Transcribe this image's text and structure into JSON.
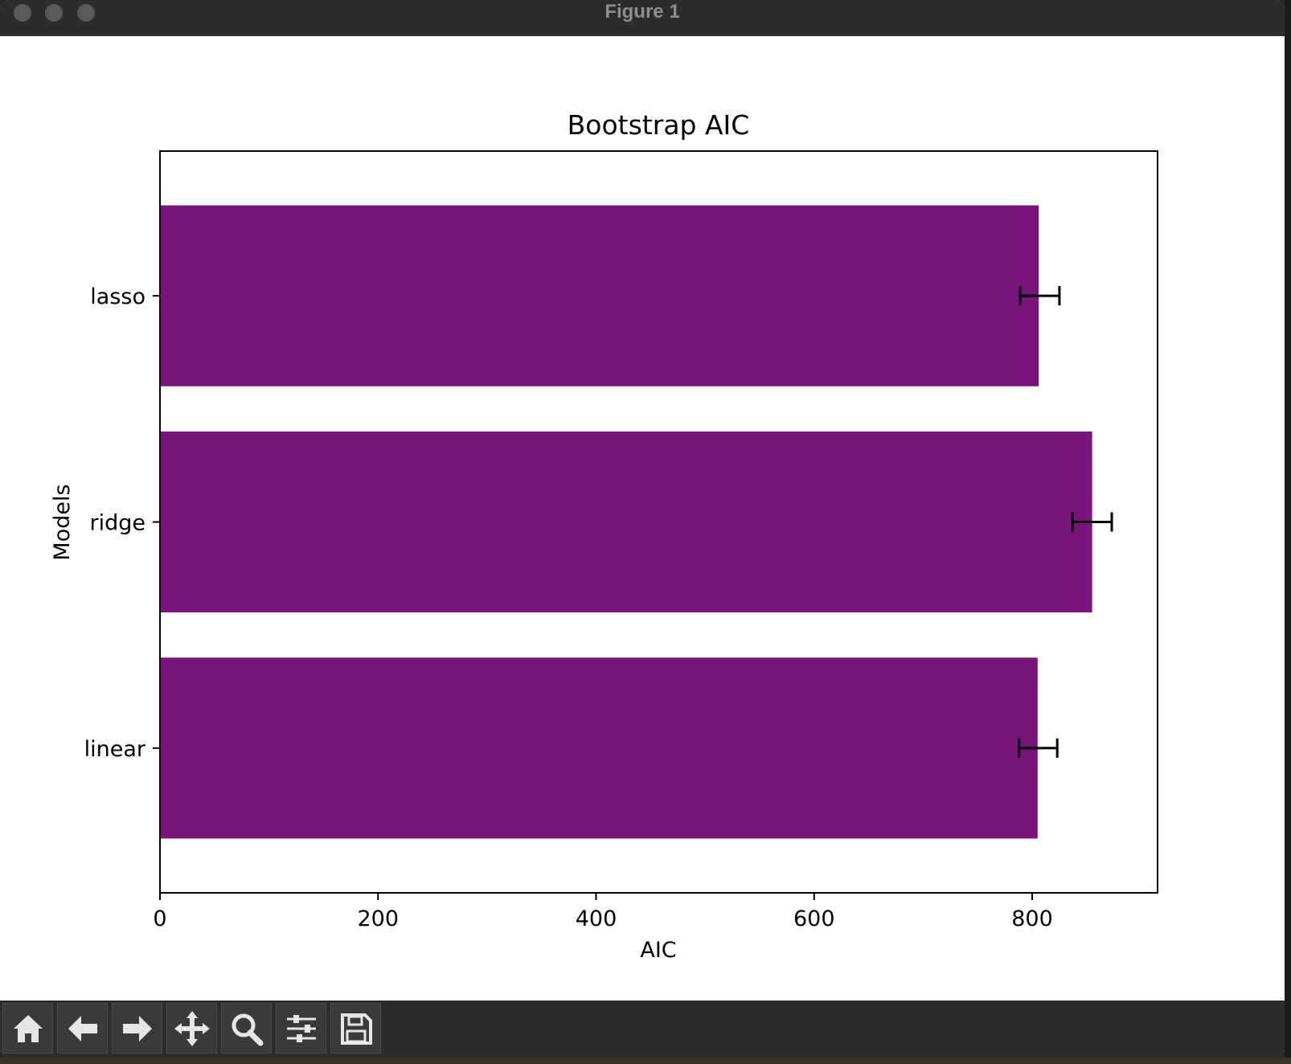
{
  "window": {
    "title": "Figure 1"
  },
  "toolbar": {
    "tools": [
      "home-icon",
      "back-arrow-icon",
      "forward-arrow-icon",
      "pan-icon",
      "zoom-icon",
      "configure-subplots-icon",
      "save-icon"
    ]
  },
  "colors": {
    "bar": "#77157a",
    "errorbar": "#000000",
    "window_chrome": "#2c2c2c"
  },
  "chart_data": {
    "type": "bar",
    "orientation": "horizontal",
    "title": "Bootstrap AIC",
    "xlabel": "AIC",
    "ylabel": "Models",
    "categories": [
      "linear",
      "ridge",
      "lasso"
    ],
    "values": [
      805,
      855,
      806
    ],
    "error_low": [
      788,
      837,
      789
    ],
    "error_high": [
      823,
      873,
      825
    ],
    "xlim": [
      0,
      915
    ],
    "xticks": [
      0,
      200,
      400,
      600,
      800
    ],
    "xtick_labels": [
      "0",
      "200",
      "400",
      "600",
      "800"
    ],
    "grid": false,
    "legend": "none"
  }
}
